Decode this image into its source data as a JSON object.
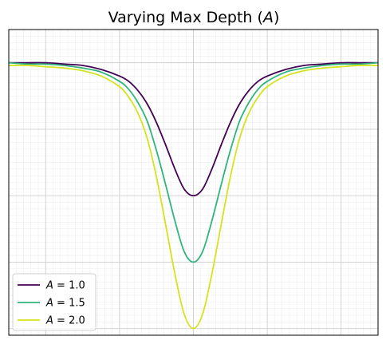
{
  "chart_data": {
    "type": "line",
    "title_prefix": "Varying Max Depth (",
    "title_var": "A",
    "title_suffix": ")",
    "xlabel": "",
    "ylabel": "",
    "xlim": [
      -5,
      5
    ],
    "ylim": [
      -2.05,
      0.25
    ],
    "grid": true,
    "minor_grid": true,
    "legend_position": "lower-left",
    "colors": {
      "frame": "#000000",
      "grid_major": "#cfcfcf",
      "grid_minor": "#eeeeee"
    },
    "x": [
      -5.0,
      -4.5,
      -4.0,
      -3.5,
      -3.0,
      -2.5,
      -2.0,
      -1.75,
      -1.5,
      -1.25,
      -1.0,
      -0.75,
      -0.5,
      -0.25,
      0.0,
      0.25,
      0.5,
      0.75,
      1.0,
      1.25,
      1.5,
      1.75,
      2.0,
      2.5,
      3.0,
      3.5,
      4.0,
      4.5,
      5.0
    ],
    "series": [
      {
        "legend_var": "A",
        "legend_eq": " = 1.0",
        "color": "#440154",
        "values": [
          0.0,
          0.0,
          0.0,
          -0.01,
          -0.02,
          -0.05,
          -0.1,
          -0.14,
          -0.21,
          -0.31,
          -0.45,
          -0.62,
          -0.8,
          -0.95,
          -1.0,
          -0.95,
          -0.8,
          -0.62,
          -0.45,
          -0.31,
          -0.21,
          -0.14,
          -0.1,
          -0.05,
          -0.02,
          -0.01,
          0.0,
          0.0,
          0.0
        ]
      },
      {
        "legend_var": "A",
        "legend_eq": " = 1.5",
        "color": "#2fb47c",
        "values": [
          0.0,
          -0.01,
          -0.01,
          -0.02,
          -0.04,
          -0.07,
          -0.14,
          -0.2,
          -0.3,
          -0.44,
          -0.66,
          -0.92,
          -1.19,
          -1.42,
          -1.5,
          -1.42,
          -1.19,
          -0.92,
          -0.66,
          -0.44,
          -0.3,
          -0.2,
          -0.14,
          -0.07,
          -0.04,
          -0.02,
          -0.01,
          -0.01,
          0.0
        ]
      },
      {
        "legend_var": "A",
        "legend_eq": " = 2.0",
        "color": "#d6e21d",
        "values": [
          -0.02,
          -0.02,
          -0.03,
          -0.04,
          -0.06,
          -0.1,
          -0.18,
          -0.26,
          -0.38,
          -0.57,
          -0.86,
          -1.22,
          -1.59,
          -1.89,
          -2.0,
          -1.89,
          -1.59,
          -1.22,
          -0.86,
          -0.57,
          -0.38,
          -0.26,
          -0.18,
          -0.1,
          -0.06,
          -0.04,
          -0.03,
          -0.02,
          -0.02
        ]
      }
    ]
  }
}
